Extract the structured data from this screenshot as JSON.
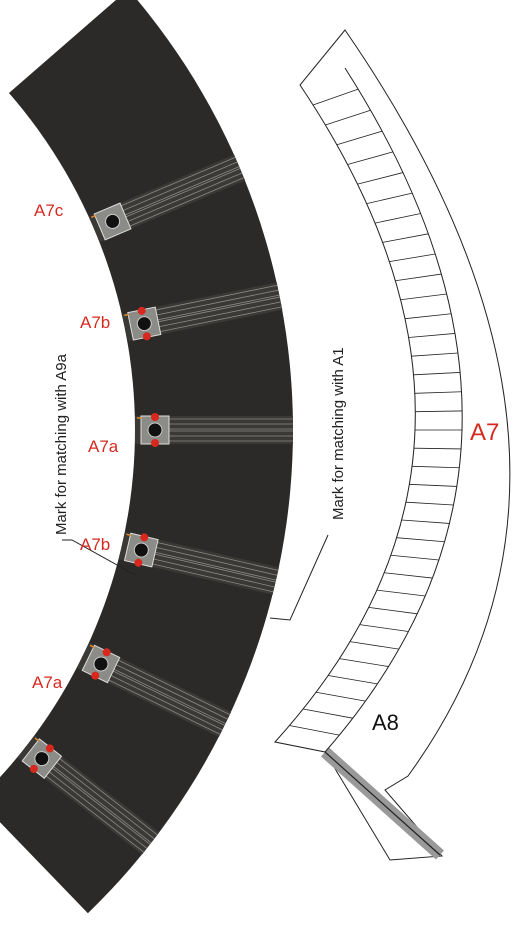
{
  "track_labels": [
    "A7c",
    "A7b",
    "A7a",
    "A7b",
    "A7a"
  ],
  "piece_label": "A7",
  "connector_label": "A8",
  "notes": [
    "Mark  for matching with A9a",
    "Mark for matching with A1"
  ]
}
